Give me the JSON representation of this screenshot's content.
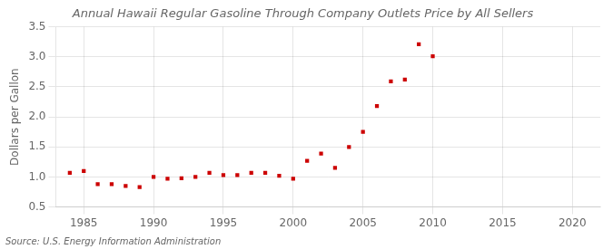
{
  "chart_data": {
    "type": "scatter",
    "title": "Annual Hawaii Regular Gasoline Through Company Outlets Price by All Sellers",
    "ylabel": "Dollars per Gallon",
    "source": "Source: U.S. Energy Information Administration",
    "x": [
      1984,
      1985,
      1986,
      1987,
      1988,
      1989,
      1990,
      1991,
      1992,
      1993,
      1994,
      1995,
      1996,
      1997,
      1998,
      1999,
      2000,
      2001,
      2002,
      2003,
      2004,
      2005,
      2006,
      2007,
      2008,
      2009,
      2010
    ],
    "values": [
      1.07,
      1.1,
      0.88,
      0.88,
      0.85,
      0.83,
      1.0,
      0.97,
      0.98,
      1.0,
      1.07,
      1.03,
      1.03,
      1.07,
      1.07,
      1.02,
      0.97,
      1.27,
      1.39,
      1.15,
      1.5,
      1.75,
      2.18,
      2.59,
      2.62,
      3.21,
      3.01
    ],
    "color": "#cc0000",
    "marker": "square",
    "xlim": [
      1983,
      2022
    ],
    "ylim": [
      0.5,
      3.5
    ],
    "xticks": [
      1985,
      1990,
      1995,
      2000,
      2005,
      2010,
      2015,
      2020
    ],
    "yticks": [
      0.5,
      {
        "value": 1.0,
        "label": "1.0"
      },
      1.5,
      {
        "value": 2.0,
        "label": "2.0"
      },
      2.5,
      {
        "value": 3.0,
        "label": "3.0"
      },
      3.5
    ],
    "grid": true
  }
}
